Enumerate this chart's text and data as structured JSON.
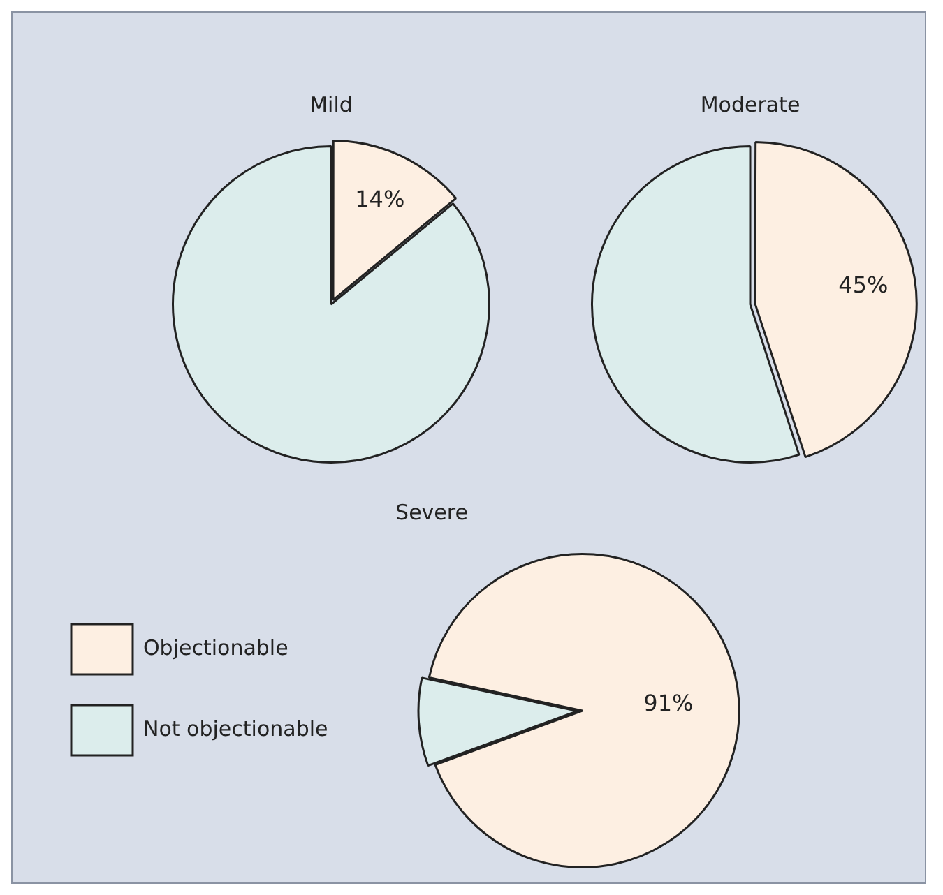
{
  "chart_data": [
    {
      "type": "pie",
      "title": "Mild",
      "categories": [
        null,
        null
      ],
      "values": [
        14,
        86
      ],
      "colors": [
        "#fdefe2",
        "#dcedec"
      ],
      "value_labels": [
        "14%",
        null
      ],
      "legend": false
    },
    {
      "type": "pie",
      "title": "Moderate",
      "categories": [
        null,
        null
      ],
      "values": [
        45,
        55
      ],
      "colors": [
        "#fdefe2",
        "#dcedec"
      ],
      "value_labels": [
        "45%",
        null
      ],
      "legend": false
    },
    {
      "type": "pie",
      "title": "Severe",
      "categories": [
        "Objectionable",
        "Not objectionable"
      ],
      "values": [
        91,
        9
      ],
      "colors": [
        "#fdefe2",
        "#dcedec"
      ],
      "value_labels": [
        "91%",
        null
      ],
      "legend": "left"
    }
  ]
}
